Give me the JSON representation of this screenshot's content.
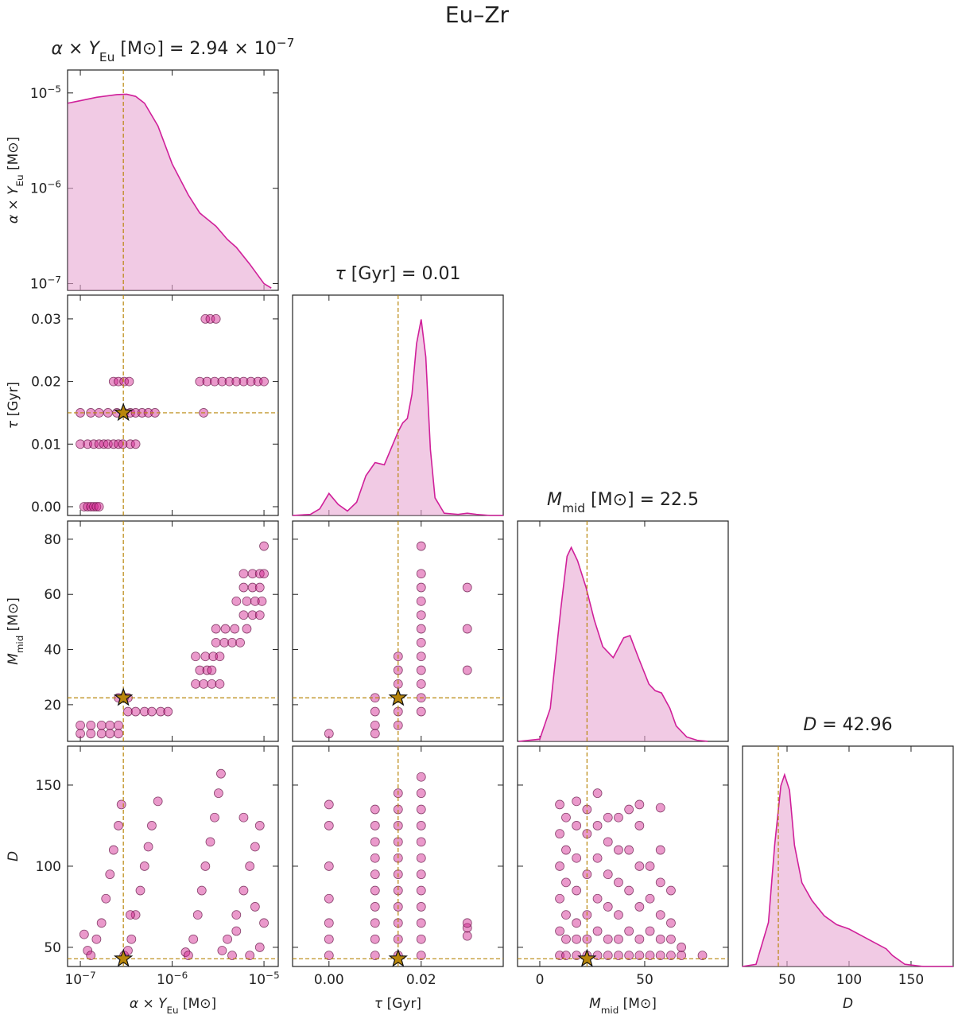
{
  "title": "Eu–Zr",
  "chart_data": {
    "type": "corner",
    "line_color": "#d0209a",
    "fill_color": "#e8a6d2",
    "point_color": "#d01c8b",
    "truth_color": "#b8860b",
    "kde_ylim": [
      0,
      1
    ],
    "params": [
      {
        "label": [
          [
            "α × Y",
            "i"
          ],
          [
            "Eu",
            "sub"
          ],
          [
            " [M⊙]",
            ""
          ]
        ],
        "title": [
          [
            "α × Y",
            "i"
          ],
          [
            "Eu",
            "sub"
          ],
          [
            " [M⊙] = 2.94 × 10",
            ""
          ],
          [
            "−7",
            "sup"
          ]
        ],
        "truth": 2.94e-07,
        "log": true,
        "xlim": [
          7.26e-08,
          1.43e-05
        ],
        "ylim": [
          8.5e-08,
          1.74e-05
        ],
        "xticks": [
          {
            "value": 1e-07,
            "label": [
              [
                "10",
                ""
              ],
              [
                "−7",
                "sup"
              ]
            ]
          },
          {
            "value": 1e-06,
            "label": [
              [
                "10",
                ""
              ],
              [
                "−6",
                "sup"
              ]
            ]
          },
          {
            "value": 1e-05,
            "label": [
              [
                "10",
                ""
              ],
              [
                "−5",
                "sup"
              ]
            ]
          }
        ],
        "yticks": [
          {
            "value": 1e-07,
            "label": [
              [
                "10",
                ""
              ],
              [
                "−7",
                "sup"
              ]
            ]
          },
          {
            "value": 1e-06,
            "label": [
              [
                "10",
                ""
              ],
              [
                "−6",
                "sup"
              ]
            ]
          },
          {
            "value": 1e-05,
            "label": [
              [
                "10",
                ""
              ],
              [
                "−5",
                "sup"
              ]
            ]
          }
        ],
        "kde_x": [
          7.3e-08,
          1e-07,
          1.5e-07,
          2.5e-07,
          3.2e-07,
          4e-07,
          5e-07,
          7e-07,
          1e-06,
          1.5e-06,
          2e-06,
          3e-06,
          4e-06,
          5e-06,
          7e-06,
          1e-05,
          1.2e-05
        ],
        "kde_y": [
          7.8e-06,
          8.3e-06,
          9e-06,
          9.6e-06,
          9.7e-06,
          9.2e-06,
          7.8e-06,
          4.5e-06,
          1.8e-06,
          8.5e-07,
          5.5e-07,
          4e-07,
          2.9e-07,
          2.4e-07,
          1.6e-07,
          1e-07,
          9e-08
        ]
      },
      {
        "label": [
          [
            "τ",
            "i"
          ],
          [
            " [Gyr]",
            ""
          ]
        ],
        "title": [
          [
            "τ",
            "i"
          ],
          [
            " [Gyr] = 0.01",
            ""
          ]
        ],
        "truth": 0.015,
        "log": false,
        "xlim": [
          -0.0079,
          0.0378
        ],
        "ylim": [
          -0.0014,
          0.0338
        ],
        "xticks": [
          {
            "value": 0,
            "label": "0.00"
          },
          {
            "value": 0.02,
            "label": "0.02"
          }
        ],
        "yticks": [
          {
            "value": 0,
            "label": "0.00"
          },
          {
            "value": 0.01,
            "label": "0.01"
          },
          {
            "value": 0.02,
            "label": "0.02"
          },
          {
            "value": 0.03,
            "label": "0.03"
          }
        ],
        "kde_x": [
          -0.0079,
          -0.004,
          -0.002,
          0,
          0.002,
          0.004,
          0.006,
          0.008,
          0.01,
          0.012,
          0.014,
          0.015,
          0.016,
          0.017,
          0.018,
          0.019,
          0.02,
          0.021,
          0.022,
          0.023,
          0.025,
          0.028,
          0.03,
          0.032,
          0.035,
          0.0378
        ],
        "kde_y": [
          0,
          0.005,
          0.03,
          0.1,
          0.05,
          0.02,
          0.06,
          0.18,
          0.24,
          0.23,
          0.33,
          0.38,
          0.42,
          0.44,
          0.55,
          0.78,
          0.89,
          0.72,
          0.3,
          0.08,
          0.01,
          0.005,
          0.01,
          0.005,
          0,
          0
        ]
      },
      {
        "label": [
          [
            "M",
            "i"
          ],
          [
            "mid",
            "sub"
          ],
          [
            " [M⊙]",
            ""
          ]
        ],
        "title": [
          [
            "M",
            "i"
          ],
          [
            "mid",
            "sub"
          ],
          [
            " [M⊙] = 22.5",
            ""
          ]
        ],
        "truth": 22.5,
        "log": false,
        "xlim": [
          -10.6,
          89.8
        ],
        "ylim": [
          6.7,
          86.6
        ],
        "xticks": [
          0,
          50
        ],
        "yticks": [
          20,
          40,
          60,
          80
        ],
        "kde_x": [
          -10,
          0,
          5,
          10,
          13,
          15,
          18,
          22,
          26,
          30,
          35,
          40,
          43,
          47,
          52,
          55,
          58,
          62,
          65,
          70,
          75,
          80
        ],
        "kde_y": [
          0,
          0.01,
          0.15,
          0.6,
          0.84,
          0.88,
          0.82,
          0.7,
          0.55,
          0.43,
          0.38,
          0.47,
          0.48,
          0.38,
          0.26,
          0.23,
          0.22,
          0.15,
          0.07,
          0.02,
          0.005,
          0
        ]
      },
      {
        "label": [
          [
            "D",
            "i"
          ]
        ],
        "title": [
          [
            "D",
            "i"
          ],
          [
            " = 42.96",
            ""
          ]
        ],
        "truth": 42.96,
        "log": false,
        "xlim": [
          14.1,
          184
        ],
        "ylim": [
          38.2,
          174
        ],
        "xticks": [
          50,
          100,
          150
        ],
        "yticks": [
          50,
          100,
          150
        ],
        "kde_x": [
          14,
          25,
          35,
          40,
          45,
          48,
          52,
          56,
          62,
          70,
          80,
          90,
          100,
          110,
          120,
          130,
          135,
          145,
          160,
          184
        ],
        "kde_y": [
          0,
          0.01,
          0.2,
          0.55,
          0.82,
          0.87,
          0.8,
          0.55,
          0.38,
          0.3,
          0.23,
          0.19,
          0.17,
          0.14,
          0.11,
          0.08,
          0.05,
          0.01,
          0,
          0
        ]
      }
    ],
    "panels": [
      {
        "xparam": 0,
        "yparam": 1,
        "x": [
          1.1e-07,
          1.2e-07,
          1.3e-07,
          1.4e-07,
          1.5e-07,
          1.6e-07,
          1e-07,
          1.2e-07,
          1.4e-07,
          1.6e-07,
          1.8e-07,
          2e-07,
          2.3e-07,
          2.6e-07,
          2.9e-07,
          3.5e-07,
          4e-07,
          1e-07,
          1.3e-07,
          1.6e-07,
          2e-07,
          2.5e-07,
          3e-07,
          3.5e-07,
          4e-07,
          4.7e-07,
          5.5e-07,
          6.5e-07,
          2.2e-06,
          2.3e-07,
          2.6e-07,
          3e-07,
          3.4e-07,
          2e-06,
          2.4e-06,
          2.9e-06,
          3.5e-06,
          4.2e-06,
          5e-06,
          6e-06,
          7.2e-06,
          8.6e-06,
          1e-05,
          2.3e-06,
          2.6e-06,
          3e-06
        ],
        "y": [
          0,
          0,
          0,
          0,
          0,
          0,
          0.01,
          0.01,
          0.01,
          0.01,
          0.01,
          0.01,
          0.01,
          0.01,
          0.01,
          0.01,
          0.01,
          0.015,
          0.015,
          0.015,
          0.015,
          0.015,
          0.015,
          0.015,
          0.015,
          0.015,
          0.015,
          0.015,
          0.015,
          0.02,
          0.02,
          0.02,
          0.02,
          0.02,
          0.02,
          0.02,
          0.02,
          0.02,
          0.02,
          0.02,
          0.02,
          0.02,
          0.02,
          0.03,
          0.03,
          0.03
        ]
      },
      {
        "xparam": 0,
        "yparam": 2,
        "x": [
          1e-07,
          1.3e-07,
          1.7e-07,
          2.1e-07,
          2.6e-07,
          1e-07,
          1.3e-07,
          1.7e-07,
          2.1e-07,
          2.6e-07,
          2.6e-07,
          3e-07,
          3.3e-07,
          3.3e-07,
          4e-07,
          5e-07,
          6e-07,
          7.5e-07,
          9e-07,
          1.8e-06,
          2.2e-06,
          2.7e-06,
          3.3e-06,
          2e-06,
          2.4e-06,
          2.7e-06,
          1.8e-06,
          2.3e-06,
          2.8e-06,
          3.3e-06,
          3e-06,
          3.7e-06,
          4.5e-06,
          5.5e-06,
          3e-06,
          3.8e-06,
          4.8e-06,
          6.5e-06,
          6e-06,
          7.5e-06,
          9e-06,
          5e-06,
          6.5e-06,
          8e-06,
          9.5e-06,
          6e-06,
          7.5e-06,
          9e-06,
          6e-06,
          7.5e-06,
          9e-06,
          1e-05,
          1e-05
        ],
        "y": [
          9.5,
          9.5,
          9.5,
          9.5,
          9.5,
          12.5,
          12.5,
          12.5,
          12.5,
          12.5,
          22.5,
          22.5,
          22.5,
          17.5,
          17.5,
          17.5,
          17.5,
          17.5,
          17.5,
          27.5,
          27.5,
          27.5,
          27.5,
          32.5,
          32.5,
          32.5,
          37.5,
          37.5,
          37.5,
          37.5,
          42.5,
          42.5,
          42.5,
          42.5,
          47.5,
          47.5,
          47.5,
          47.5,
          52.5,
          52.5,
          52.5,
          57.5,
          57.5,
          57.5,
          57.5,
          62.5,
          62.5,
          62.5,
          67.5,
          67.5,
          67.5,
          67.5,
          77.5
        ]
      },
      {
        "xparam": 1,
        "yparam": 2,
        "x": [
          0,
          0.01,
          0.01,
          0.01,
          0.01,
          0.015,
          0.015,
          0.015,
          0.015,
          0.015,
          0.02,
          0.02,
          0.02,
          0.02,
          0.02,
          0.02,
          0.02,
          0.02,
          0.02,
          0.02,
          0.02,
          0.02,
          0.03,
          0.03,
          0.03
        ],
        "y": [
          9.5,
          9.5,
          12.5,
          17.5,
          22.5,
          12.5,
          17.5,
          27.5,
          32.5,
          37.5,
          17.5,
          22.5,
          27.5,
          32.5,
          37.5,
          42.5,
          47.5,
          52.5,
          57.5,
          62.5,
          67.5,
          77.5,
          32.5,
          47.5,
          62.5
        ]
      },
      {
        "xparam": 0,
        "yparam": 3,
        "x": [
          1.1e-07,
          1.2e-07,
          1.3e-07,
          1.5e-07,
          1.7e-07,
          1.9e-07,
          2.1e-07,
          2.3e-07,
          2.6e-07,
          2.8e-07,
          3e-07,
          3.3e-07,
          3.6e-07,
          4e-07,
          4.5e-07,
          5e-07,
          5.5e-07,
          6e-07,
          7e-07,
          3.5e-07,
          1.4e-06,
          1.5e-06,
          1.7e-06,
          1.9e-06,
          2.1e-06,
          2.3e-06,
          2.6e-06,
          2.9e-06,
          3.2e-06,
          3.4e-06,
          3.5e-06,
          4e-06,
          5e-06,
          6e-06,
          7e-06,
          8e-06,
          9e-06,
          6e-06,
          5e-06,
          7e-06,
          9e-06,
          1e-05,
          4.5e-06,
          8e-06
        ],
        "y": [
          58,
          48,
          45,
          55,
          65,
          80,
          95,
          110,
          125,
          138,
          45,
          48,
          55,
          70,
          85,
          100,
          112,
          125,
          140,
          70,
          47,
          45,
          55,
          70,
          85,
          100,
          115,
          130,
          145,
          157,
          48,
          55,
          70,
          85,
          100,
          112,
          125,
          130,
          60,
          45,
          50,
          65,
          45,
          75
        ]
      },
      {
        "xparam": 1,
        "yparam": 3,
        "x": [
          0,
          0,
          0,
          0,
          0,
          0,
          0,
          0.01,
          0.01,
          0.01,
          0.01,
          0.01,
          0.01,
          0.01,
          0.01,
          0.01,
          0.01,
          0.015,
          0.015,
          0.015,
          0.015,
          0.015,
          0.015,
          0.015,
          0.015,
          0.015,
          0.015,
          0.015,
          0.02,
          0.02,
          0.02,
          0.02,
          0.02,
          0.02,
          0.02,
          0.02,
          0.02,
          0.02,
          0.02,
          0.02,
          0.03,
          0.03,
          0.03
        ],
        "y": [
          45,
          55,
          65,
          80,
          100,
          125,
          138,
          45,
          55,
          65,
          75,
          85,
          95,
          105,
          115,
          125,
          135,
          45,
          55,
          65,
          75,
          85,
          95,
          105,
          115,
          125,
          135,
          145,
          45,
          55,
          65,
          75,
          85,
          95,
          105,
          115,
          125,
          135,
          145,
          155,
          57,
          62,
          65
        ]
      },
      {
        "xparam": 2,
        "yparam": 3,
        "x": [
          9.5,
          9.5,
          9.5,
          9.5,
          9.5,
          9.5,
          12.5,
          12.5,
          12.5,
          12.5,
          12.5,
          12.5,
          17.5,
          17.5,
          17.5,
          17.5,
          17.5,
          17.5,
          17.5,
          22.5,
          22.5,
          22.5,
          22.5,
          22.5,
          22.5,
          27.5,
          27.5,
          27.5,
          27.5,
          27.5,
          27.5,
          32.5,
          32.5,
          32.5,
          32.5,
          32.5,
          32.5,
          37.5,
          37.5,
          37.5,
          37.5,
          37.5,
          37.5,
          42.5,
          42.5,
          42.5,
          42.5,
          42.5,
          47.5,
          47.5,
          47.5,
          47.5,
          47.5,
          47.5,
          52.5,
          52.5,
          52.5,
          52.5,
          57.5,
          57.5,
          57.5,
          57.5,
          57.5,
          57.5,
          62.5,
          62.5,
          62.5,
          62.5,
          67.5,
          67.5,
          77.5
        ],
        "y": [
          45,
          60,
          80,
          100,
          120,
          138,
          45,
          55,
          70,
          90,
          110,
          130,
          45,
          55,
          65,
          85,
          105,
          125,
          140,
          45,
          55,
          70,
          95,
          120,
          135,
          45,
          60,
          80,
          105,
          125,
          145,
          45,
          55,
          75,
          95,
          115,
          130,
          45,
          55,
          70,
          90,
          110,
          130,
          45,
          60,
          85,
          110,
          135,
          45,
          55,
          75,
          100,
          125,
          138,
          45,
          60,
          80,
          100,
          45,
          55,
          70,
          90,
          110,
          136,
          45,
          55,
          65,
          85,
          45,
          50,
          45
        ]
      }
    ]
  }
}
